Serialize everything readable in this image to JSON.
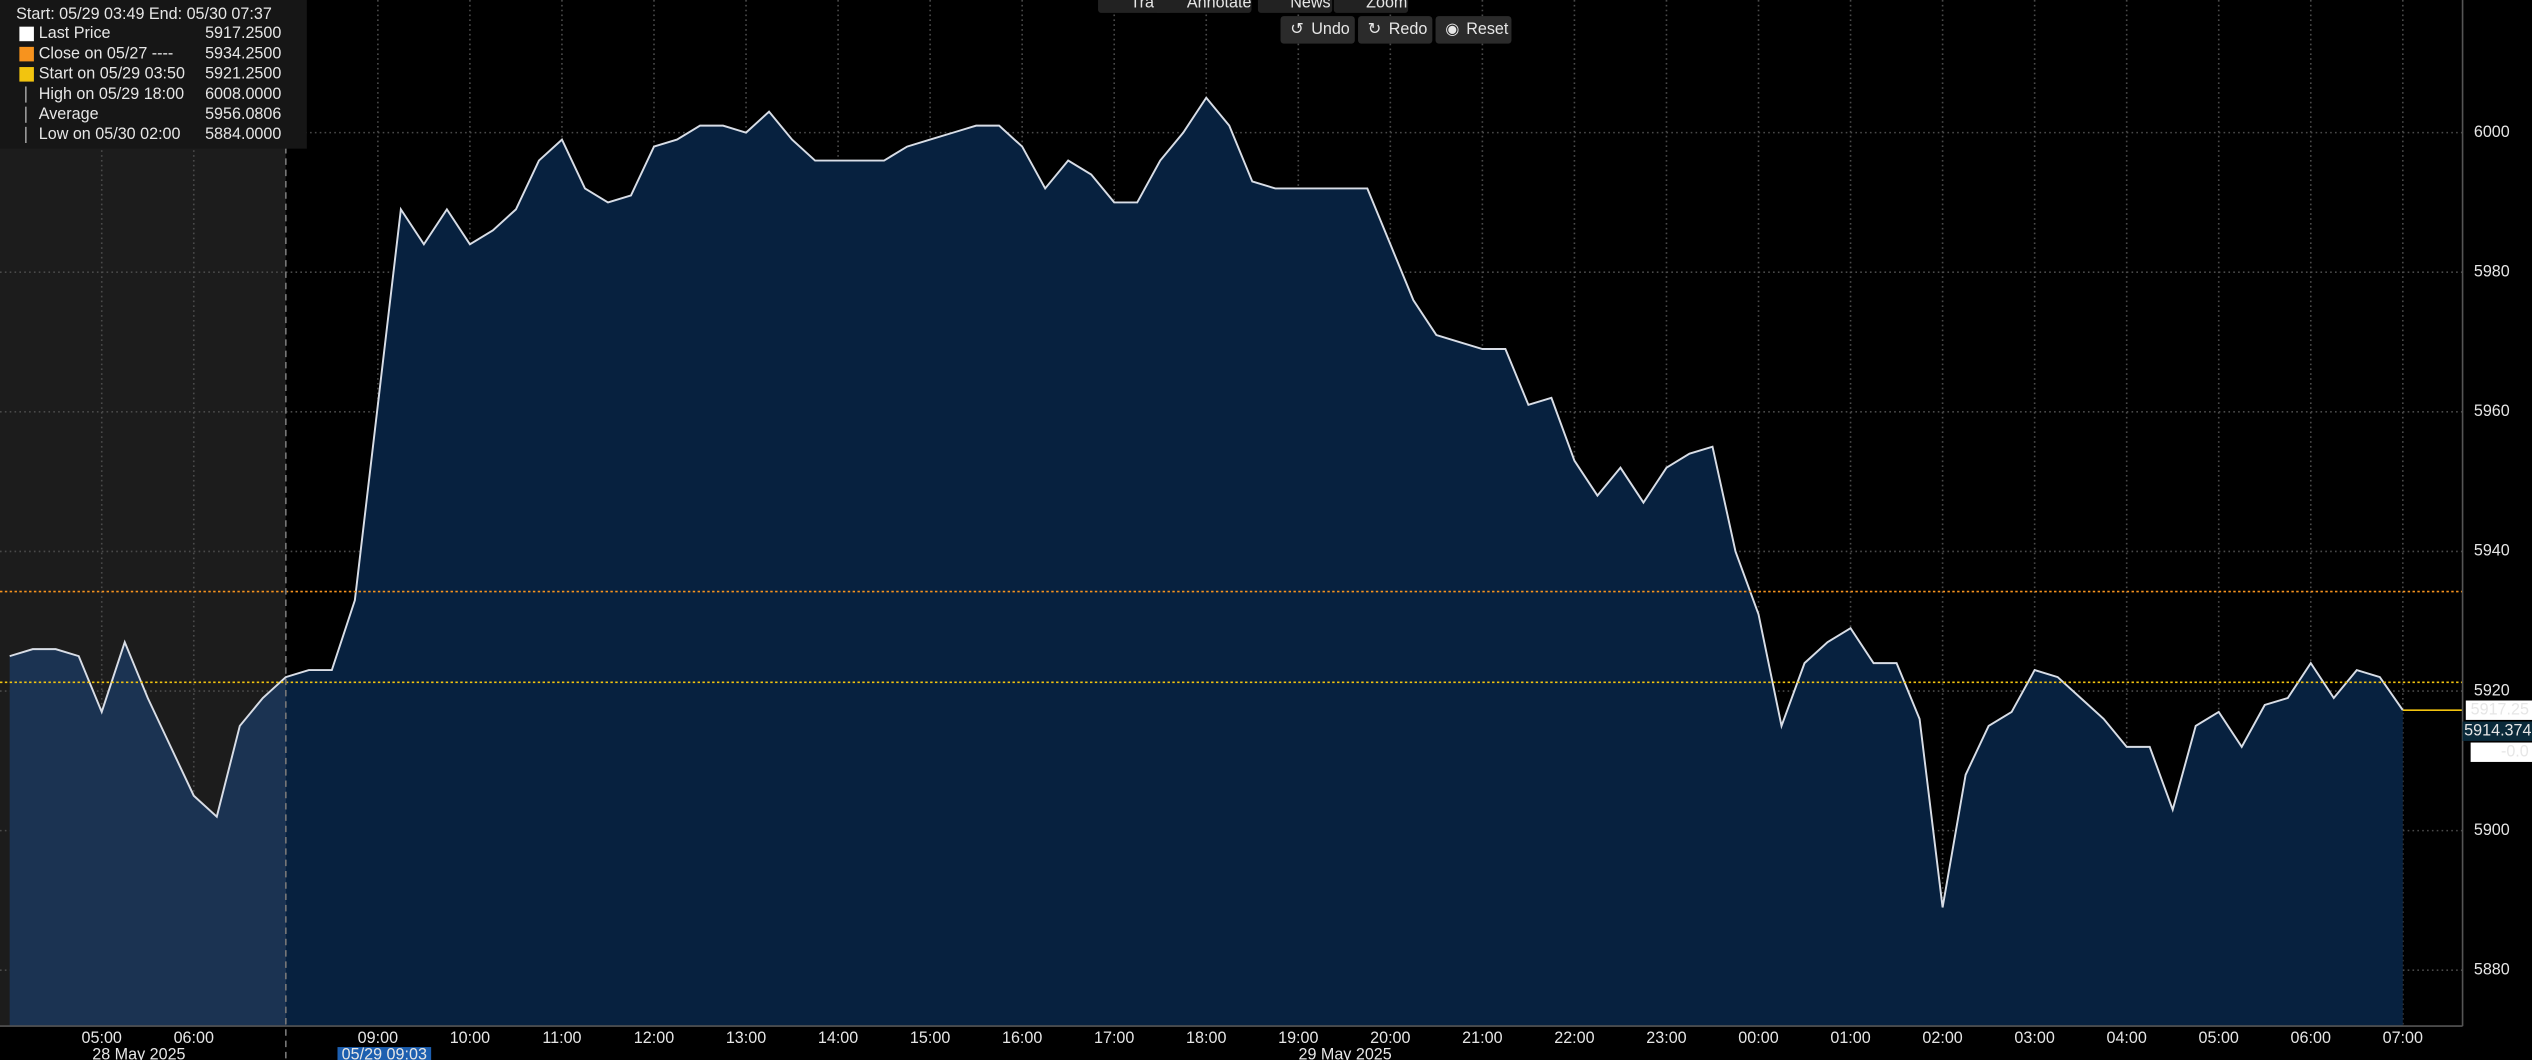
{
  "toolbar": {
    "tools": [
      "Track",
      "Annotate",
      "News",
      "Zoom"
    ],
    "actions": [
      "Undo",
      "Redo",
      "Reset"
    ]
  },
  "chart_data": {
    "type": "area",
    "range_label": "Start: 05/29 03:49 End: 05/30 07:37",
    "legend_rows": [
      {
        "label": "Last Price",
        "value": 5917.25,
        "value_label": "5917.2500",
        "color": "#ffffff"
      },
      {
        "label": "Close on 05/27 ----",
        "value": 5934.25,
        "value_label": "5934.2500",
        "color": "#f7931e",
        "line": true
      },
      {
        "label": "Start on 05/29 03:50",
        "value": 5921.25,
        "value_label": "5921.2500",
        "color": "#f2c40f",
        "line": true
      },
      {
        "label": "High on 05/29 18:00",
        "value": 6008,
        "value_label": "6008.0000",
        "color": "#9a9a9a"
      },
      {
        "label": "Average",
        "value": 5956.0806,
        "value_label": "5956.0806",
        "color": "#9a9a9a"
      },
      {
        "label": "Low on 05/30 02:00",
        "value": 5884,
        "value_label": "5884.0000",
        "color": "#9a9a9a"
      }
    ],
    "categories": [
      null,
      null,
      null,
      null,
      "05:00",
      null,
      null,
      null,
      "06:00",
      null,
      null,
      null,
      null,
      null,
      null,
      null,
      "09:00",
      null,
      null,
      null,
      "10:00",
      null,
      null,
      null,
      "11:00",
      null,
      null,
      null,
      "12:00",
      null,
      null,
      null,
      "13:00",
      null,
      null,
      null,
      "14:00",
      null,
      null,
      null,
      "15:00",
      null,
      null,
      null,
      "16:00",
      null,
      null,
      null,
      "17:00",
      null,
      null,
      null,
      "18:00",
      null,
      null,
      null,
      "19:00",
      null,
      null,
      null,
      "20:00",
      null,
      null,
      null,
      "21:00",
      null,
      null,
      null,
      "22:00",
      null,
      null,
      null,
      "23:00",
      null,
      null,
      null,
      "00:00",
      null,
      null,
      null,
      "01:00",
      null,
      null,
      null,
      "02:00",
      null,
      null,
      null,
      "03:00",
      null,
      null,
      null,
      "04:00",
      null,
      null,
      null,
      "05:00",
      null,
      null,
      null,
      "06:00",
      null,
      null,
      null,
      "07:00"
    ],
    "values": [
      5925,
      5926,
      5926,
      5925,
      5917,
      5927,
      5919,
      5912,
      5905,
      5902,
      5915,
      5919,
      5922,
      5923,
      5923,
      5933,
      5961,
      5989,
      5984,
      5989,
      5984,
      5986,
      5989,
      5996,
      5999,
      5992,
      5990,
      5991,
      5998,
      5999,
      6001,
      6001,
      6000,
      6003,
      5999,
      5996,
      5996,
      5996,
      5996,
      5998,
      5999,
      6000,
      6001,
      6001,
      5998,
      5992,
      5996,
      5994,
      5990,
      5990,
      5996,
      6000,
      6005,
      6001,
      5993,
      5992,
      5992,
      5992,
      5992,
      5992,
      5984,
      5976,
      5971,
      5970,
      5969,
      5969,
      5961,
      5962,
      5953,
      5948,
      5952,
      5947,
      5952,
      5954,
      5955,
      5940,
      5931,
      5915,
      5924,
      5927,
      5929,
      5924,
      5924,
      5916,
      5889,
      5908,
      5915,
      5917,
      5923,
      5922,
      5919,
      5916,
      5912,
      5912,
      5903,
      5915,
      5917,
      5912,
      5918,
      5919,
      5924,
      5919,
      5923,
      5922,
      5917.25
    ],
    "color": "#d8dde6",
    "ylim": [
      5872,
      6019
    ],
    "yticks": [
      5880,
      5900,
      5920,
      5940,
      5960,
      5980,
      6000
    ],
    "grid": true,
    "last_labels": [
      {
        "value": 5917.25,
        "label": "5917.25"
      },
      {
        "value": 5914.3749,
        "label": "5914.3749"
      }
    ],
    "change_label": "-0.0",
    "date_labels": [
      "28 May 2025",
      "05/29 09:03",
      "29 May 2025"
    ]
  }
}
